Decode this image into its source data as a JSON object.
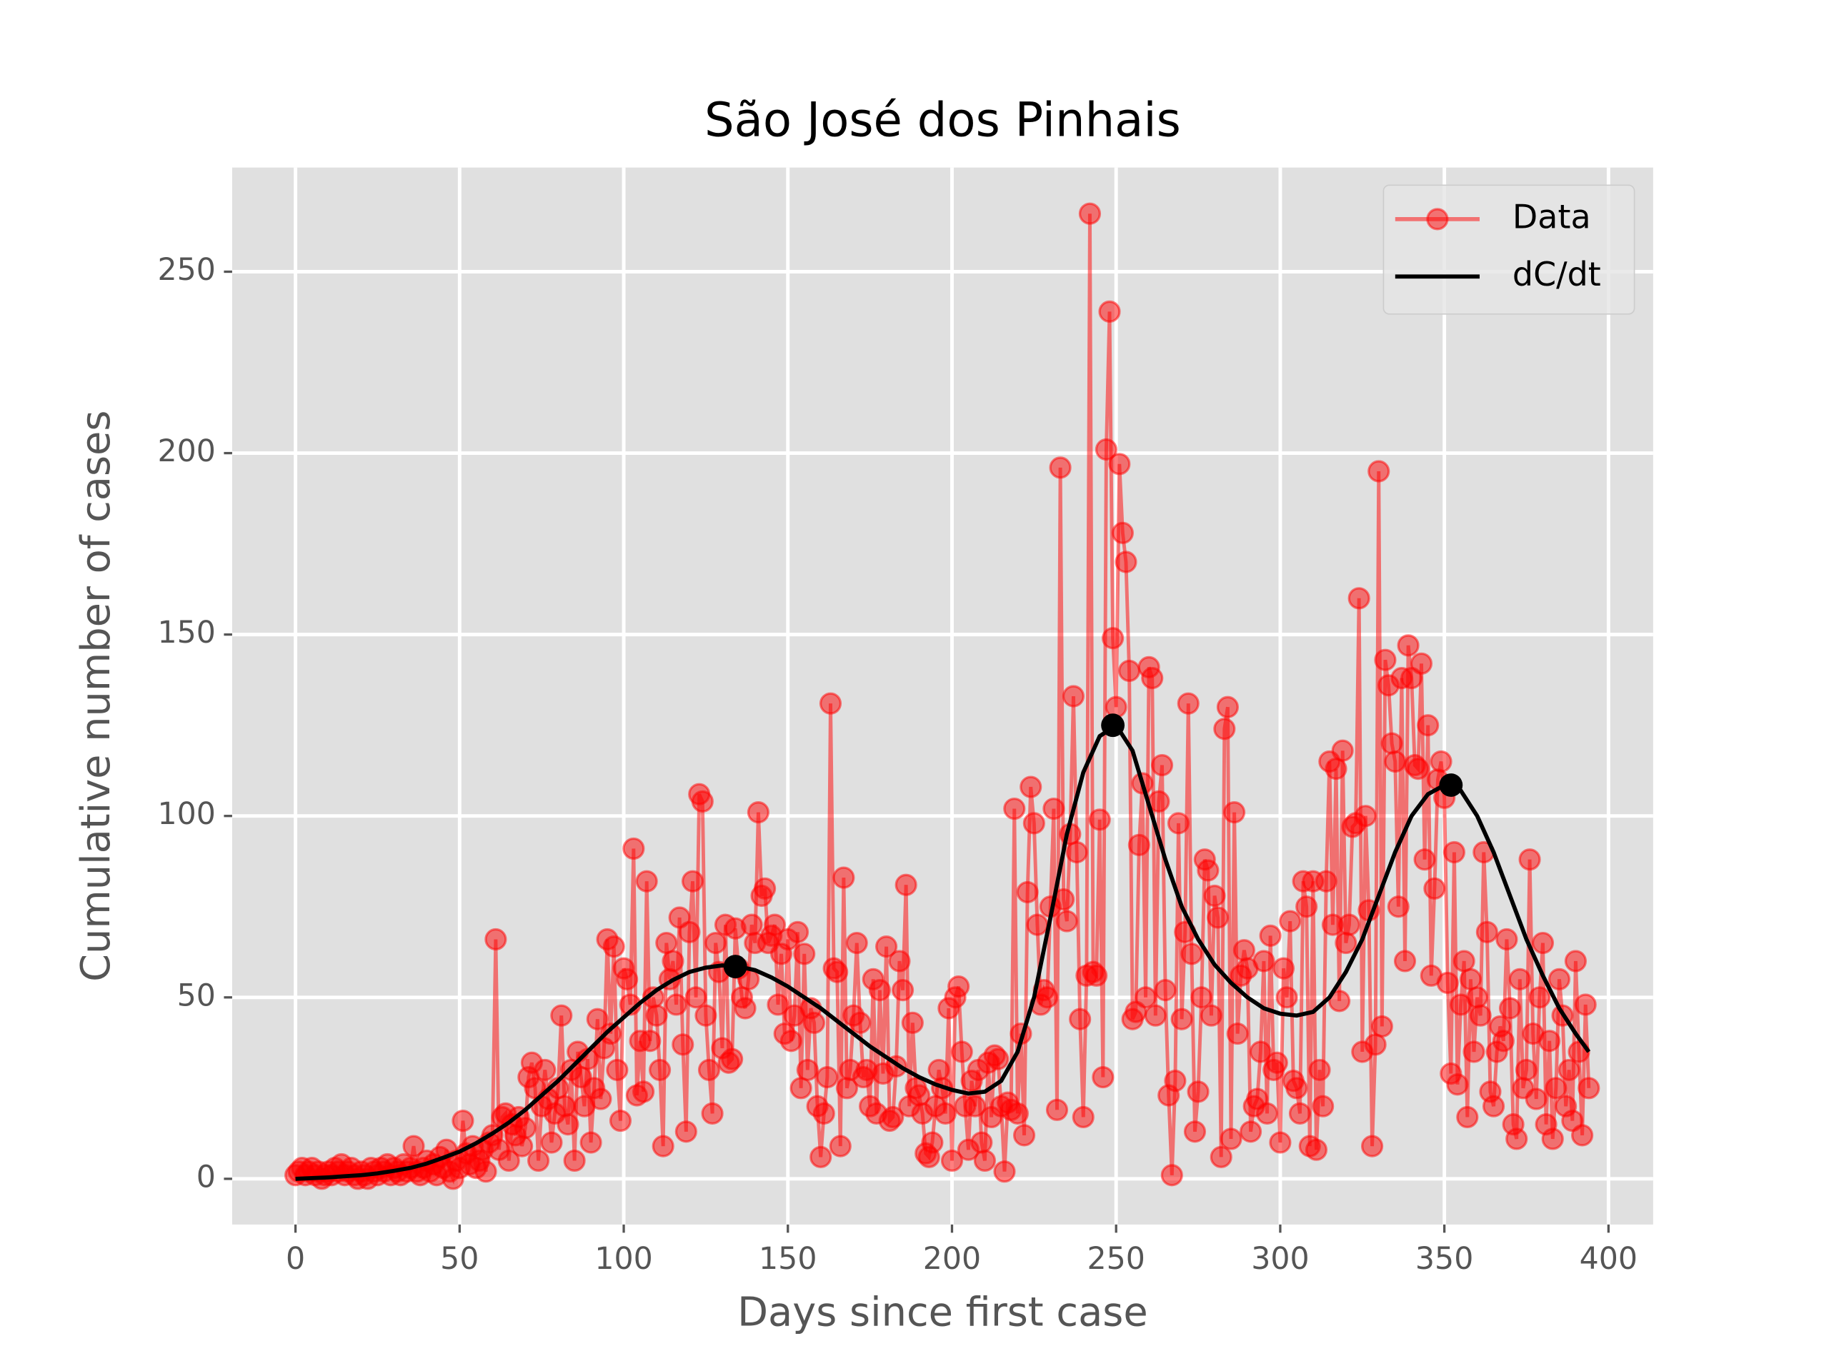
{
  "chart_data": {
    "type": "line",
    "title": "São José dos Pinhais",
    "xlabel": "Days since first case",
    "ylabel": "Cumulative number of cases",
    "xlim": [
      -19.3,
      413.6
    ],
    "ylim": [
      -12.6,
      278.7
    ],
    "xticks": [
      0,
      50,
      100,
      150,
      200,
      250,
      300,
      350,
      400
    ],
    "yticks": [
      0,
      50,
      100,
      150,
      200,
      250
    ],
    "grid": true,
    "legend": "upper right",
    "series": [
      {
        "name": "Data",
        "color": "#ff0000",
        "marker": true,
        "x": [
          0,
          1,
          2,
          3,
          4,
          5,
          6,
          7,
          8,
          9,
          10,
          11,
          12,
          13,
          14,
          15,
          16,
          17,
          18,
          19,
          20,
          21,
          22,
          23,
          24,
          25,
          26,
          27,
          28,
          29,
          30,
          31,
          32,
          33,
          34,
          35,
          36,
          37,
          38,
          39,
          40,
          41,
          42,
          43,
          44,
          45,
          46,
          47,
          48,
          49,
          50,
          51,
          52,
          53,
          54,
          55,
          56,
          57,
          58,
          59,
          60,
          61,
          62,
          63,
          64,
          65,
          66,
          67,
          68,
          69,
          70,
          71,
          72,
          73,
          74,
          75,
          76,
          77,
          78,
          79,
          80,
          81,
          82,
          83,
          84,
          85,
          86,
          87,
          88,
          89,
          90,
          91,
          92,
          93,
          94,
          95,
          96,
          97,
          98,
          99,
          100,
          101,
          102,
          103,
          104,
          105,
          106,
          107,
          108,
          109,
          110,
          111,
          112,
          113,
          114,
          115,
          116,
          117,
          118,
          119,
          120,
          121,
          122,
          123,
          124,
          125,
          126,
          127,
          128,
          129,
          130,
          131,
          132,
          133,
          134,
          135,
          136,
          137,
          138,
          139,
          140,
          141,
          142,
          143,
          144,
          145,
          146,
          147,
          148,
          149,
          150,
          151,
          152,
          153,
          154,
          155,
          156,
          157,
          158,
          159,
          160,
          161,
          162,
          163,
          164,
          165,
          166,
          167,
          168,
          169,
          170,
          171,
          172,
          173,
          174,
          175,
          176,
          177,
          178,
          179,
          180,
          181,
          182,
          183,
          184,
          185,
          186,
          187,
          188,
          189,
          190,
          191,
          192,
          193,
          194,
          195,
          196,
          197,
          198,
          199,
          200,
          201,
          202,
          203,
          204,
          205,
          206,
          207,
          208,
          209,
          210,
          211,
          212,
          213,
          214,
          215,
          216,
          217,
          218,
          219,
          220,
          221,
          222,
          223,
          224,
          225,
          226,
          227,
          228,
          229,
          230,
          231,
          232,
          233,
          234,
          235,
          236,
          237,
          238,
          239,
          240,
          241,
          242,
          243,
          244,
          245,
          246,
          247,
          248,
          249,
          250,
          251,
          252,
          253,
          254,
          255,
          256,
          257,
          258,
          259,
          260,
          261,
          262,
          263,
          264,
          265,
          266,
          267,
          268,
          269,
          270,
          271,
          272,
          273,
          274,
          275,
          276,
          277,
          278,
          279,
          280,
          281,
          282,
          283,
          284,
          285,
          286,
          287,
          288,
          289,
          290,
          291,
          292,
          293,
          294,
          295,
          296,
          297,
          298,
          299,
          300,
          301,
          302,
          303,
          304,
          305,
          306,
          307,
          308,
          309,
          310,
          311,
          312,
          313,
          314,
          315,
          316,
          317,
          318,
          319,
          320,
          321,
          322,
          323,
          324,
          325,
          326,
          327,
          328,
          329,
          330,
          331,
          332,
          333,
          334,
          335,
          336,
          337,
          338,
          339,
          340,
          341,
          342,
          343,
          344,
          345,
          346,
          347,
          348,
          349,
          350,
          351,
          352,
          353,
          354,
          355,
          356,
          357,
          358,
          359,
          360,
          361,
          362,
          363,
          364,
          365,
          366,
          367,
          368,
          369,
          370,
          371,
          372,
          373,
          374,
          375,
          376,
          377,
          378,
          379,
          380,
          381,
          382,
          383,
          384,
          385,
          386,
          387,
          388,
          389,
          390,
          391,
          392,
          393,
          394
        ],
        "values": [
          1,
          2,
          3,
          1,
          2,
          3,
          1,
          2,
          0,
          1,
          2,
          1,
          3,
          2,
          4,
          1,
          2,
          3,
          1,
          0,
          2,
          1,
          0,
          3,
          2,
          1,
          3,
          2,
          4,
          1,
          3,
          2,
          1,
          4,
          2,
          3,
          9,
          2,
          1,
          3,
          5,
          2,
          4,
          1,
          6,
          3,
          8,
          2,
          0,
          5,
          3,
          16,
          7,
          4,
          9,
          3,
          5,
          8,
          2,
          10,
          12,
          66,
          8,
          17,
          18,
          5,
          15,
          12,
          17,
          9,
          14,
          28,
          32,
          25,
          5,
          20,
          30,
          22,
          10,
          18,
          25,
          45,
          20,
          15,
          30,
          5,
          35,
          28,
          20,
          33,
          10,
          25,
          44,
          22,
          36,
          66,
          40,
          64,
          30,
          16,
          58,
          55,
          48,
          91,
          23,
          38,
          24,
          82,
          38,
          50,
          45,
          30,
          9,
          65,
          55,
          60,
          48,
          72,
          37,
          13,
          68,
          82,
          50,
          106,
          104,
          45,
          30,
          18,
          65,
          57,
          36,
          70,
          32,
          33,
          69,
          58,
          50,
          47,
          55,
          70,
          65,
          101,
          78,
          80,
          65,
          67,
          70,
          48,
          62,
          40,
          66,
          38,
          45,
          68,
          25,
          62,
          30,
          47,
          43,
          20,
          6,
          18,
          28,
          131,
          58,
          57,
          9,
          83,
          25,
          30,
          45,
          65,
          43,
          28,
          30,
          20,
          55,
          18,
          52,
          29,
          64,
          16,
          17,
          31,
          60,
          52,
          81,
          20,
          43,
          25,
          23,
          18,
          7,
          6,
          10,
          20,
          30,
          25,
          18,
          47,
          5,
          50,
          53,
          35,
          20,
          8,
          27,
          20,
          30,
          10,
          5,
          32,
          17,
          34,
          33,
          20,
          2,
          21,
          19,
          102,
          18,
          40,
          12,
          79,
          108,
          98,
          70,
          48,
          52,
          50,
          75,
          102,
          19,
          196,
          77,
          71,
          95,
          133,
          90,
          44,
          17,
          56,
          266,
          57,
          56,
          99,
          28,
          201,
          239,
          149,
          130,
          197,
          178,
          170,
          140,
          44,
          46,
          92,
          109,
          50,
          141,
          138,
          45,
          104,
          114,
          52,
          23,
          1,
          27,
          98,
          44,
          68,
          131,
          62,
          13,
          24,
          50,
          88,
          85,
          45,
          78,
          72,
          6,
          124,
          130,
          11,
          101,
          40,
          56,
          63,
          58,
          13,
          20,
          22,
          35,
          60,
          18,
          67,
          30,
          32,
          10,
          58,
          50,
          71,
          27,
          25,
          18,
          82,
          75,
          9,
          82,
          8,
          30,
          20,
          82,
          115,
          70,
          113,
          49,
          118,
          65,
          70,
          97,
          98,
          160,
          35,
          100,
          74,
          9,
          37,
          195,
          42,
          143,
          136,
          120,
          115,
          75,
          138,
          60,
          147,
          138,
          114,
          113,
          142,
          88,
          125,
          56,
          80,
          110,
          115,
          105,
          54,
          29,
          90,
          26,
          48,
          60,
          17,
          55,
          35,
          50,
          45,
          90,
          68,
          24,
          20,
          35,
          42,
          38,
          66,
          47,
          15,
          11,
          55,
          25,
          30,
          88,
          40,
          22,
          50,
          65,
          15,
          38,
          11,
          25,
          55,
          45,
          20,
          30,
          16,
          60,
          35,
          12,
          48,
          25
        ]
      },
      {
        "name": "dC/dt",
        "color": "#000000",
        "x": [
          0,
          5,
          10,
          15,
          20,
          25,
          30,
          35,
          40,
          45,
          50,
          55,
          60,
          65,
          70,
          75,
          80,
          85,
          90,
          95,
          100,
          105,
          110,
          115,
          120,
          125,
          130,
          135,
          140,
          145,
          150,
          155,
          160,
          165,
          170,
          175,
          180,
          185,
          190,
          195,
          200,
          205,
          210,
          215,
          220,
          225,
          230,
          235,
          240,
          245,
          250,
          255,
          260,
          265,
          270,
          275,
          280,
          285,
          290,
          295,
          300,
          305,
          310,
          315,
          320,
          325,
          330,
          335,
          340,
          345,
          350,
          355,
          360,
          365,
          370,
          375,
          380,
          385,
          390,
          394
        ],
        "values": [
          0,
          0.2,
          0.4,
          0.7,
          1,
          1.5,
          2.2,
          3,
          4.2,
          5.8,
          7.5,
          9.8,
          12.5,
          15.5,
          19,
          23,
          27,
          31.5,
          36,
          40.5,
          44.5,
          48.5,
          52,
          54.8,
          57,
          58.2,
          58.8,
          58.5,
          57.5,
          55.5,
          53,
          50,
          47,
          43.5,
          40,
          36.5,
          33.5,
          30.5,
          28,
          26,
          24.5,
          23.5,
          24,
          27,
          35,
          50,
          72,
          95,
          112,
          122,
          125,
          118,
          103,
          88,
          75,
          66,
          59,
          54,
          50,
          47,
          45.5,
          45,
          46,
          50,
          57,
          66,
          78,
          90,
          100,
          106,
          108.5,
          107,
          100,
          90,
          78,
          66,
          56,
          47,
          40,
          35
        ]
      }
    ],
    "peaks": {
      "color": "#000000",
      "x": [
        134,
        249,
        352
      ],
      "values": [
        58.5,
        125,
        108.5
      ]
    }
  }
}
